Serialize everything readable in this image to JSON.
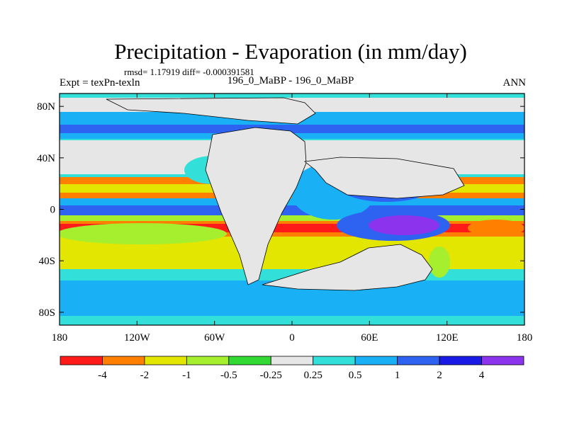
{
  "title": "Precipitation - Evaporation (in mm/day)",
  "stats": "rmsd= 1.17919 diff= -0.000391581",
  "experiment": "Expt = texPn-texln",
  "case_label": "196_0_MaBP - 196_0_MaBP",
  "season": "ANN",
  "map": {
    "lon_ticks": [
      "180",
      "120W",
      "60W",
      "0",
      "60E",
      "120E",
      "180"
    ],
    "lat_ticks": [
      "80N",
      "40N",
      "0",
      "40S",
      "80S"
    ]
  },
  "colorbar": {
    "colors": [
      "#ff1a1a",
      "#ff8000",
      "#e3e600",
      "#a6ef2e",
      "#33d933",
      "#e6e6e6",
      "#33e0d9",
      "#1ab0f5",
      "#2e63f2",
      "#1a1ae6",
      "#8c33ee"
    ],
    "labels": [
      "-4",
      "-2",
      "-1",
      "-0.5",
      "-0.25",
      "0.25",
      "0.5",
      "1",
      "2",
      "4"
    ]
  },
  "colors": {
    "background": "#ffffff",
    "land_mask": "#e6e6e6",
    "frame": "#000000"
  }
}
